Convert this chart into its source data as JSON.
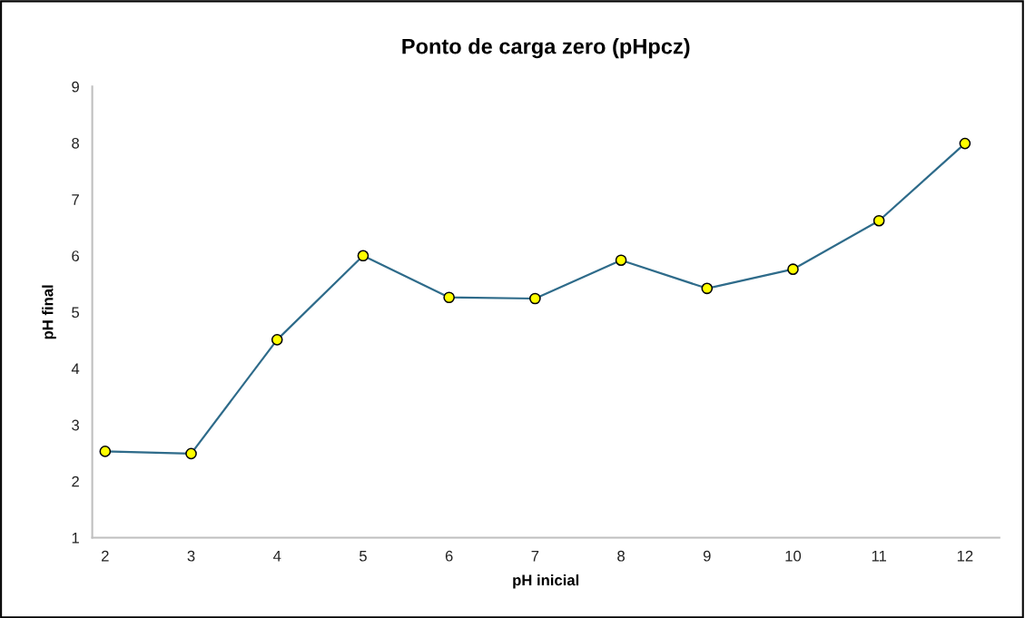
{
  "chart_data": {
    "type": "line",
    "title": "Ponto de carga zero (pHpcz)",
    "xlabel": "pH inicial",
    "ylabel": "pH final",
    "categories": [
      "2",
      "3",
      "4",
      "5",
      "6",
      "7",
      "8",
      "9",
      "10",
      "11",
      "12"
    ],
    "series": [
      {
        "color": "#2e6b8a",
        "values": [
          2.53,
          2.49,
          4.51,
          6.0,
          5.26,
          5.24,
          5.92,
          5.42,
          5.76,
          6.62,
          7.99
        ]
      }
    ],
    "marker": "circle",
    "line_style": "solid",
    "ylim": [
      1,
      9
    ],
    "yticks": [
      1,
      2,
      3,
      4,
      5,
      6,
      7,
      8,
      9
    ],
    "grid": false,
    "legend": false
  }
}
